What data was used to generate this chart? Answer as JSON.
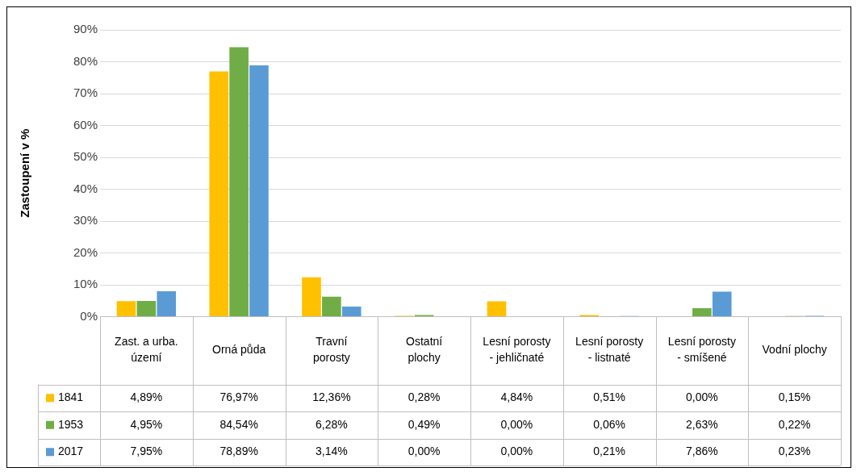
{
  "chart_data": {
    "type": "bar",
    "ylabel": "Zastoupení v %",
    "categories": [
      "Zast. a urba. území",
      "Orná půda",
      "Travní porosty",
      "Ostatní plochy",
      "Lesní porosty - jehličnaté",
      "Lesní porosty - listnaté",
      "Lesní porosty - smíšené",
      "Vodní plochy"
    ],
    "series": [
      {
        "name": "1841",
        "color": "#ffc000",
        "values": [
          4.89,
          76.97,
          12.36,
          0.28,
          4.84,
          0.51,
          0.0,
          0.15
        ],
        "value_labels": [
          "4,89%",
          "76,97%",
          "12,36%",
          "0,28%",
          "4,84%",
          "0,51%",
          "0,00%",
          "0,15%"
        ]
      },
      {
        "name": "1953",
        "color": "#70ad47",
        "values": [
          4.95,
          84.54,
          6.28,
          0.49,
          0.0,
          0.06,
          2.63,
          0.22
        ],
        "value_labels": [
          "4,95%",
          "84,54%",
          "6,28%",
          "0,49%",
          "0,00%",
          "0,06%",
          "2,63%",
          "0,22%"
        ]
      },
      {
        "name": "2017",
        "color": "#5b9bd5",
        "values": [
          7.95,
          78.89,
          3.14,
          0.0,
          0.0,
          0.21,
          7.86,
          0.23
        ],
        "value_labels": [
          "7,95%",
          "78,89%",
          "3,14%",
          "0,00%",
          "0,00%",
          "0,21%",
          "7,86%",
          "0,23%"
        ]
      }
    ],
    "ylim": [
      0,
      90
    ],
    "yticks": [
      {
        "value": 0,
        "label": "0%"
      },
      {
        "value": 10,
        "label": "10%"
      },
      {
        "value": 20,
        "label": "20%"
      },
      {
        "value": 30,
        "label": "30%"
      },
      {
        "value": 40,
        "label": "40%"
      },
      {
        "value": 50,
        "label": "50%"
      },
      {
        "value": 60,
        "label": "60%"
      },
      {
        "value": 70,
        "label": "70%"
      },
      {
        "value": 80,
        "label": "80%"
      },
      {
        "value": 90,
        "label": "90%"
      }
    ],
    "grid": "y",
    "legend": "bottom left"
  }
}
